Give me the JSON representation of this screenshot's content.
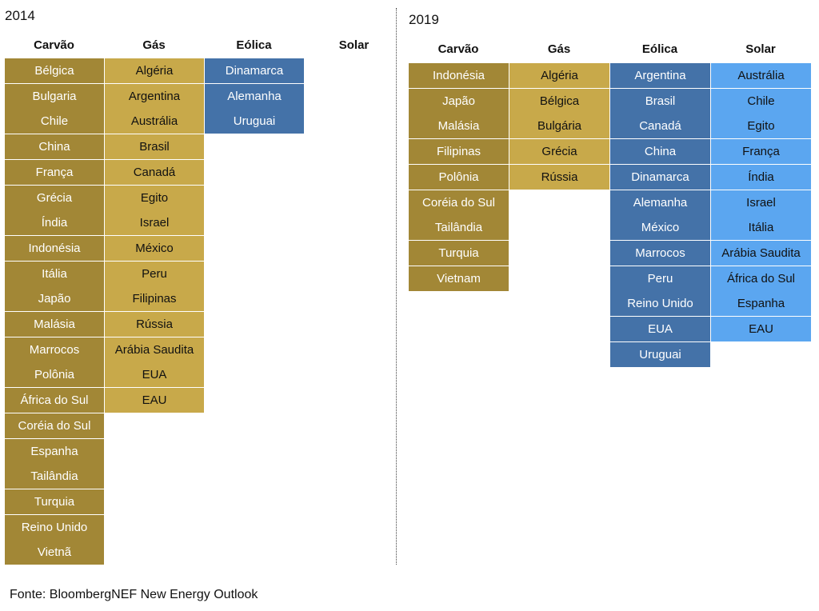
{
  "chart_data": {
    "type": "table",
    "panels": [
      {
        "year": "2014",
        "columns": [
          {
            "name": "Carvão",
            "category": "coal",
            "countries": [
              "Bélgica",
              "Bulgaria",
              "Chile",
              "China",
              "França",
              "Grécia",
              "Índia",
              "Indonésia",
              "Itália",
              "Japão",
              "Malásia",
              "Marrocos",
              "Polônia",
              "África do Sul",
              "Coréia do Sul",
              "Espanha",
              "Tailândia",
              "Turquia",
              "Reino Unido",
              "Vietnã"
            ]
          },
          {
            "name": "Gás",
            "category": "gas",
            "countries": [
              "Algéria",
              "Argentina",
              "Austrália",
              "Brasil",
              "Canadá",
              "Egito",
              "Israel",
              "México",
              "Peru",
              "Filipinas",
              "Rússia",
              "Arábia Saudita",
              "EUA",
              "EAU"
            ]
          },
          {
            "name": "Eólica",
            "category": "wind",
            "countries": [
              "Dinamarca",
              "Alemanha",
              "Uruguai"
            ]
          },
          {
            "name": "Solar",
            "category": "solar",
            "countries": []
          }
        ]
      },
      {
        "year": "2019",
        "columns": [
          {
            "name": "Carvão",
            "category": "coal",
            "countries": [
              "Indonésia",
              "Japão",
              "Malásia",
              "Filipinas",
              "Polônia",
              "Coréia do Sul",
              "Tailândia",
              "Turquia",
              "Vietnam"
            ]
          },
          {
            "name": "Gás",
            "category": "gas",
            "countries": [
              "Algéria",
              "Bélgica",
              "Bulgária",
              "Grécia",
              "Rússia"
            ]
          },
          {
            "name": "Eólica",
            "category": "wind",
            "countries": [
              "Argentina",
              "Brasil",
              "Canadá",
              "China",
              "Dinamarca",
              "Alemanha",
              "México",
              "Marrocos",
              "Peru",
              "Reino Unido",
              "EUA",
              "Uruguai"
            ]
          },
          {
            "name": "Solar",
            "category": "solar",
            "countries": [
              "Austrália",
              "Chile",
              "Egito",
              "França",
              "Índia",
              "Israel",
              "Itália",
              "Arábia Saudita",
              "África do Sul",
              "Espanha",
              "EAU"
            ]
          }
        ]
      }
    ],
    "colors": {
      "coal": "#a28736",
      "gas": "#c8a94a",
      "wind": "#4472a8",
      "solar": "#5ba6f0"
    }
  },
  "source": "Fonte: BloombergNEF New Energy Outlook"
}
